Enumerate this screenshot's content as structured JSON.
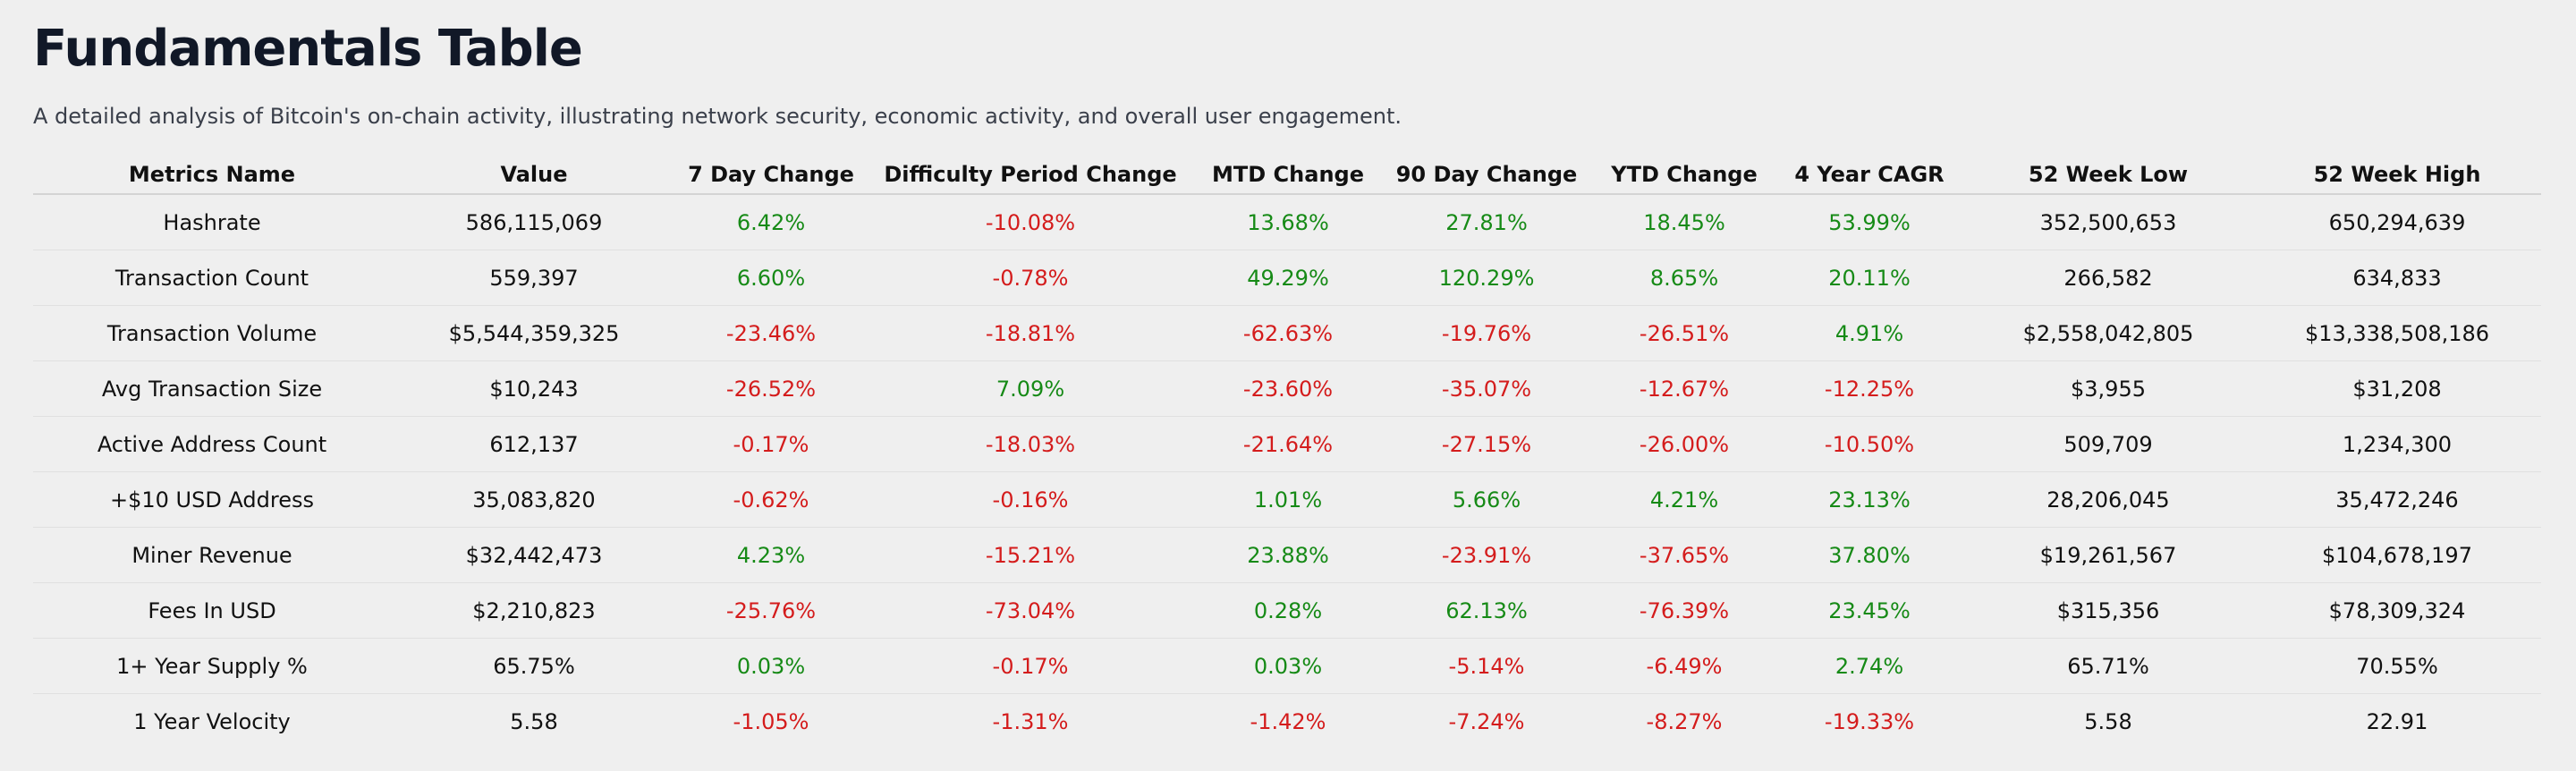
{
  "header": {
    "title": "Fundamentals Table",
    "subtitle": "A detailed analysis of Bitcoin's on-chain activity, illustrating network security, economic activity, and overall user engagement."
  },
  "table": {
    "columns": [
      "Metrics Name",
      "Value",
      "7 Day Change",
      "Difficulty Period Change",
      "MTD Change",
      "90 Day Change",
      "YTD Change",
      "4 Year CAGR",
      "52 Week Low",
      "52 Week High"
    ],
    "rows": [
      [
        "Hashrate",
        "586,115,069",
        "6.42%",
        "-10.08%",
        "13.68%",
        "27.81%",
        "18.45%",
        "53.99%",
        "352,500,653",
        "650,294,639"
      ],
      [
        "Transaction Count",
        "559,397",
        "6.60%",
        "-0.78%",
        "49.29%",
        "120.29%",
        "8.65%",
        "20.11%",
        "266,582",
        "634,833"
      ],
      [
        "Transaction Volume",
        "$5,544,359,325",
        "-23.46%",
        "-18.81%",
        "-62.63%",
        "-19.76%",
        "-26.51%",
        "4.91%",
        "$2,558,042,805",
        "$13,338,508,186"
      ],
      [
        "Avg Transaction Size",
        "$10,243",
        "-26.52%",
        "7.09%",
        "-23.60%",
        "-35.07%",
        "-12.67%",
        "-12.25%",
        "$3,955",
        "$31,208"
      ],
      [
        "Active Address Count",
        "612,137",
        "-0.17%",
        "-18.03%",
        "-21.64%",
        "-27.15%",
        "-26.00%",
        "-10.50%",
        "509,709",
        "1,234,300"
      ],
      [
        "+$10 USD Address",
        "35,083,820",
        "-0.62%",
        "-0.16%",
        "1.01%",
        "5.66%",
        "4.21%",
        "23.13%",
        "28,206,045",
        "35,472,246"
      ],
      [
        "Miner Revenue",
        "$32,442,473",
        "4.23%",
        "-15.21%",
        "23.88%",
        "-23.91%",
        "-37.65%",
        "37.80%",
        "$19,261,567",
        "$104,678,197"
      ],
      [
        "Fees In USD",
        "$2,210,823",
        "-25.76%",
        "-73.04%",
        "0.28%",
        "62.13%",
        "-76.39%",
        "23.45%",
        "$315,356",
        "$78,309,324"
      ],
      [
        "1+ Year Supply %",
        "65.75%",
        "0.03%",
        "-0.17%",
        "0.03%",
        "-5.14%",
        "-6.49%",
        "2.74%",
        "65.71%",
        "70.55%"
      ],
      [
        "1 Year Velocity",
        "5.58",
        "-1.05%",
        "-1.31%",
        "-1.42%",
        "-7.24%",
        "-8.27%",
        "-19.33%",
        "5.58",
        "22.91"
      ]
    ]
  }
}
